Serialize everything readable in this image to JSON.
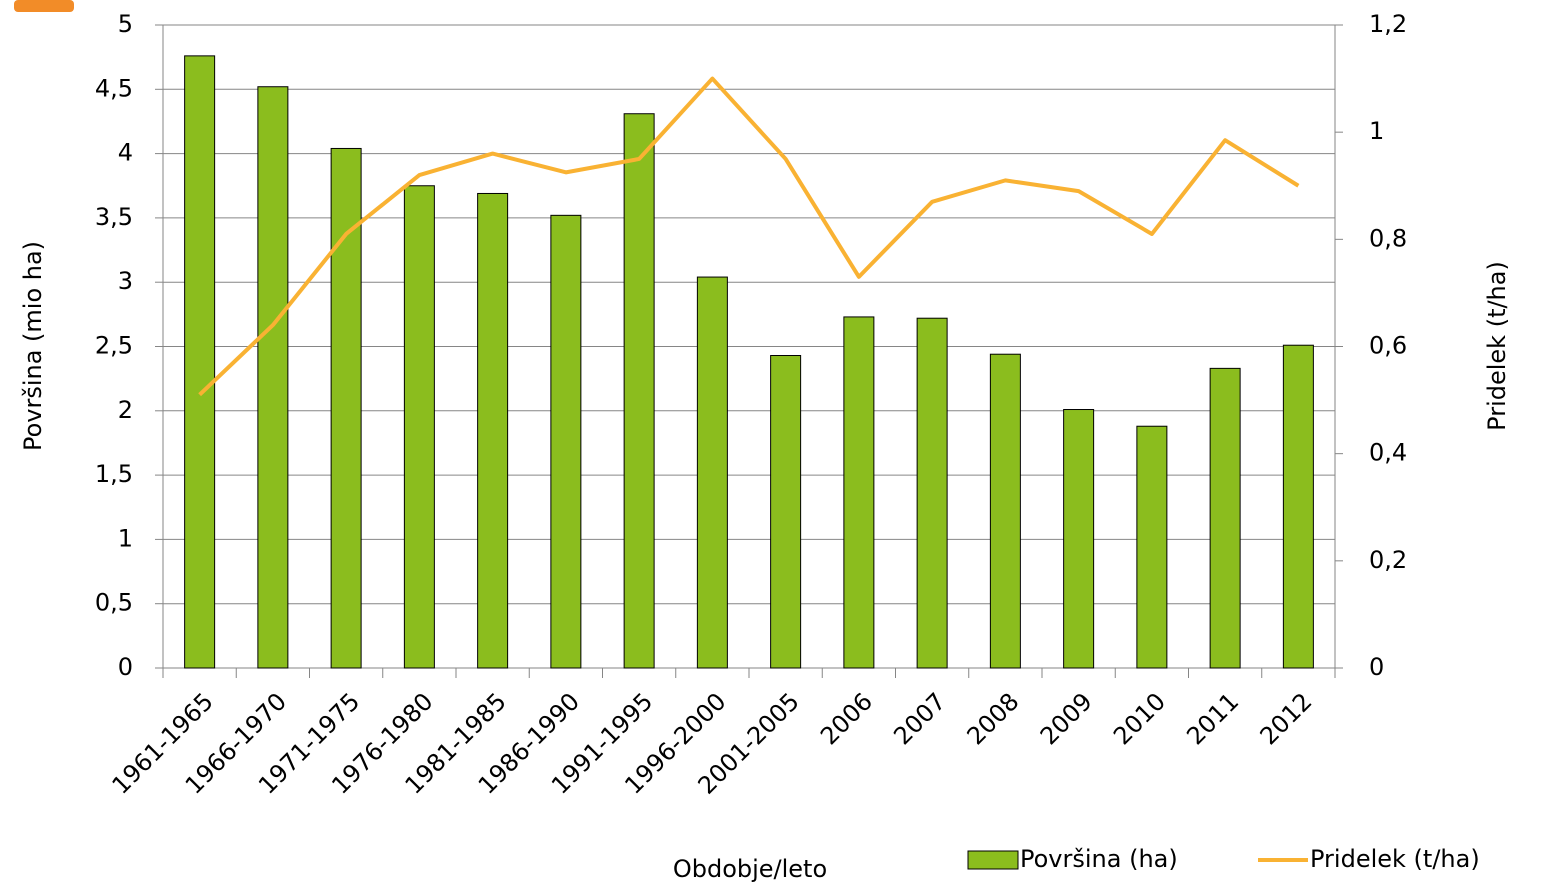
{
  "chart_data": {
    "type": "bar-line",
    "categories": [
      "1961-1965",
      "1966-1970",
      "1971-1975",
      "1976-1980",
      "1981-1985",
      "1986-1990",
      "1991-1995",
      "1996-2000",
      "2001-2005",
      "2006",
      "2007",
      "2008",
      "2009",
      "2010",
      "2011",
      "2012"
    ],
    "series": [
      {
        "name": "Površina (ha)",
        "type": "bar",
        "color": "#8bbd1e",
        "values": [
          4.76,
          4.52,
          4.04,
          3.75,
          3.69,
          3.52,
          4.31,
          3.04,
          2.43,
          2.73,
          2.72,
          2.44,
          2.01,
          1.88,
          2.33,
          2.51
        ]
      },
      {
        "name": "Pridelek (t/ha)",
        "type": "line",
        "axis": "y2",
        "color": "#f9b233",
        "values": [
          0.51,
          0.64,
          0.81,
          0.92,
          0.96,
          0.925,
          0.95,
          1.1,
          0.95,
          0.73,
          0.87,
          0.91,
          0.89,
          0.81,
          0.985,
          0.9
        ]
      }
    ],
    "ylim": [
      0,
      5
    ],
    "yticks": [
      0,
      {
        "value": 0.5,
        "label": "0,5"
      },
      1,
      {
        "value": 1.5,
        "label": "1,5"
      },
      2,
      {
        "value": 2.5,
        "label": "2,5"
      },
      3,
      {
        "value": 3.5,
        "label": "3,5"
      },
      4,
      {
        "value": 4.5,
        "label": "4,5"
      },
      5
    ],
    "y2lim": [
      0,
      1.2
    ],
    "y2ticks": [
      0,
      {
        "value": 0.2,
        "label": "0,2"
      },
      {
        "value": 0.4,
        "label": "0,4"
      },
      {
        "value": 0.6,
        "label": "0,6"
      },
      {
        "value": 0.8,
        "label": "0,8"
      },
      1,
      {
        "value": 1.2,
        "label": "1,2"
      }
    ],
    "ylabel": "Površina (mio ha)",
    "y2label": "Pridelek (t/ha)",
    "xlabel": "Obdobje/leto",
    "grid": true
  }
}
